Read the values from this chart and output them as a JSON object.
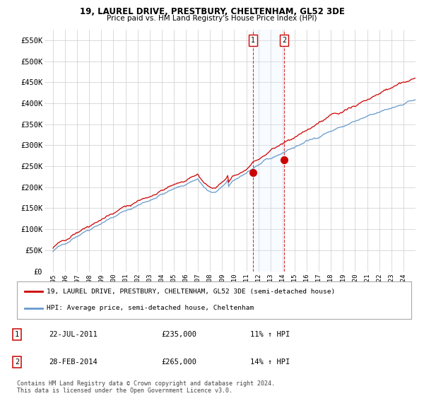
{
  "title": "19, LAUREL DRIVE, PRESTBURY, CHELTENHAM, GL52 3DE",
  "subtitle": "Price paid vs. HM Land Registry's House Price Index (HPI)",
  "ylabel_ticks": [
    "£0",
    "£50K",
    "£100K",
    "£150K",
    "£200K",
    "£250K",
    "£300K",
    "£350K",
    "£400K",
    "£450K",
    "£500K",
    "£550K"
  ],
  "ytick_values": [
    0,
    50000,
    100000,
    150000,
    200000,
    250000,
    300000,
    350000,
    400000,
    450000,
    500000,
    550000
  ],
  "sale1_date": "22-JUL-2011",
  "sale1_price": 235000,
  "sale1_hpi": "11% ↑ HPI",
  "sale2_date": "28-FEB-2014",
  "sale2_price": 265000,
  "sale2_hpi": "14% ↑ HPI",
  "legend_line1": "19, LAUREL DRIVE, PRESTBURY, CHELTENHAM, GL52 3DE (semi-detached house)",
  "legend_line2": "HPI: Average price, semi-detached house, Cheltenham",
  "footnote": "Contains HM Land Registry data © Crown copyright and database right 2024.\nThis data is licensed under the Open Government Licence v3.0.",
  "line_color_red": "#cc0000",
  "line_color_blue": "#6699cc",
  "shade_color": "#ddeeff",
  "grid_color": "#cccccc",
  "background_color": "#ffffff"
}
